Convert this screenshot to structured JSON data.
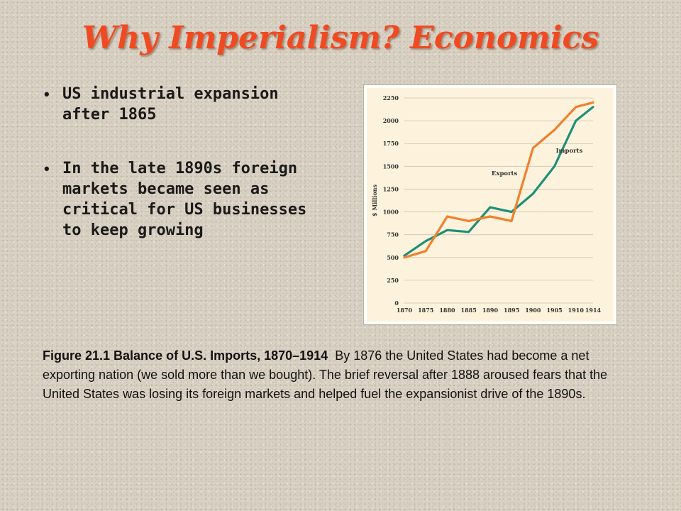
{
  "slide": {
    "title": "Why Imperialism?  Economics",
    "bullets": [
      "US industrial expansion after 1865",
      "In the late 1890s foreign markets became seen as critical for US businesses to keep growing"
    ],
    "caption_title": "Figure 21.1 Balance of U.S. Imports, 1870–1914",
    "caption_text": "By 1876 the United States had become a net exporting nation (we sold more than we bought). The brief reversal after 1888 aroused fears that the United States was losing its foreign markets and helped fuel the expansionist drive of the 1890s."
  },
  "colors": {
    "title": "#f04a22",
    "chart_bg": "#fdf3dc",
    "imports": "#1e8f7a",
    "exports": "#f0802e",
    "grid": "#c9c3b6"
  },
  "chart_data": {
    "type": "line",
    "ylabel": "$ Millions",
    "ylim": [
      0,
      2250
    ],
    "yticks": [
      0,
      250,
      500,
      750,
      1000,
      1250,
      1500,
      1750,
      2000,
      2250
    ],
    "xlim": [
      1870,
      1914
    ],
    "xticks": [
      1870,
      1875,
      1880,
      1885,
      1890,
      1895,
      1900,
      1905,
      1910,
      1914
    ],
    "grid": "horizontal",
    "series": [
      {
        "name": "Imports",
        "x": [
          1870,
          1875,
          1880,
          1885,
          1890,
          1895,
          1900,
          1905,
          1910,
          1914
        ],
        "values": [
          520,
          680,
          800,
          780,
          1050,
          1000,
          1200,
          1500,
          2000,
          2150
        ]
      },
      {
        "name": "Exports",
        "x": [
          1870,
          1875,
          1880,
          1885,
          1890,
          1895,
          1900,
          1905,
          1910,
          1914
        ],
        "values": [
          500,
          570,
          950,
          900,
          950,
          900,
          1700,
          1900,
          2150,
          2200
        ]
      }
    ]
  }
}
